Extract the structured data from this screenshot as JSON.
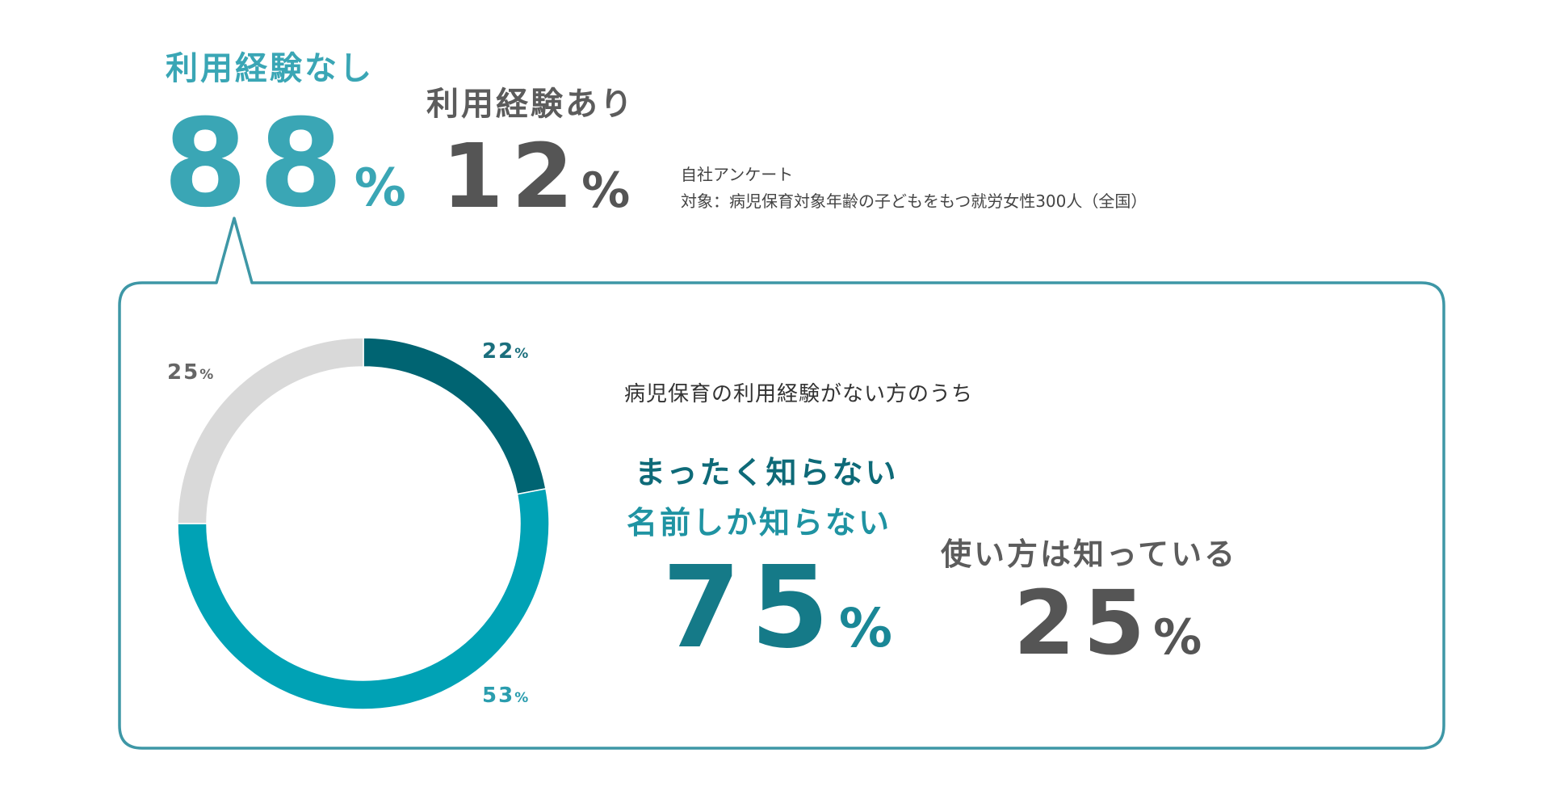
{
  "top": {
    "no_experience": {
      "label": "利用経験なし",
      "value": "88",
      "unit": "%"
    },
    "has_experience": {
      "label": "利用経験あり",
      "value": "12",
      "unit": "%"
    }
  },
  "source": {
    "line1": "自社アンケート",
    "line2": "対象：病児保育対象年齢の子どもをもつ就労女性300人（全国）"
  },
  "detail": {
    "subhead": "病児保育の利用経験がない方のうち",
    "unaware_label_1": "まったく知らない",
    "unaware_label_2": "名前しか知らない",
    "unaware_value": "75",
    "aware_label": "使い方は知っている",
    "aware_value": "25",
    "unit": "%"
  },
  "colors": {
    "teal_light": "#3aa6b5",
    "dark_teal": "#006472",
    "teal": "#00a2b5",
    "light_gray": "#d9d9d9",
    "gray_text": "#555555",
    "frame": "#3e97a6"
  },
  "chart_data": {
    "type": "pie",
    "donut": true,
    "series": [
      {
        "name": "まったく知らない",
        "value": 22,
        "label": "22",
        "unit": "%",
        "color": "#006472"
      },
      {
        "name": "名前しか知らない",
        "value": 53,
        "label": "53",
        "unit": "%",
        "color": "#00a2b5"
      },
      {
        "name": "使い方は知っている",
        "value": 25,
        "label": "25",
        "unit": "%",
        "color": "#d9d9d9"
      }
    ],
    "start": "top",
    "direction": "clockwise"
  }
}
